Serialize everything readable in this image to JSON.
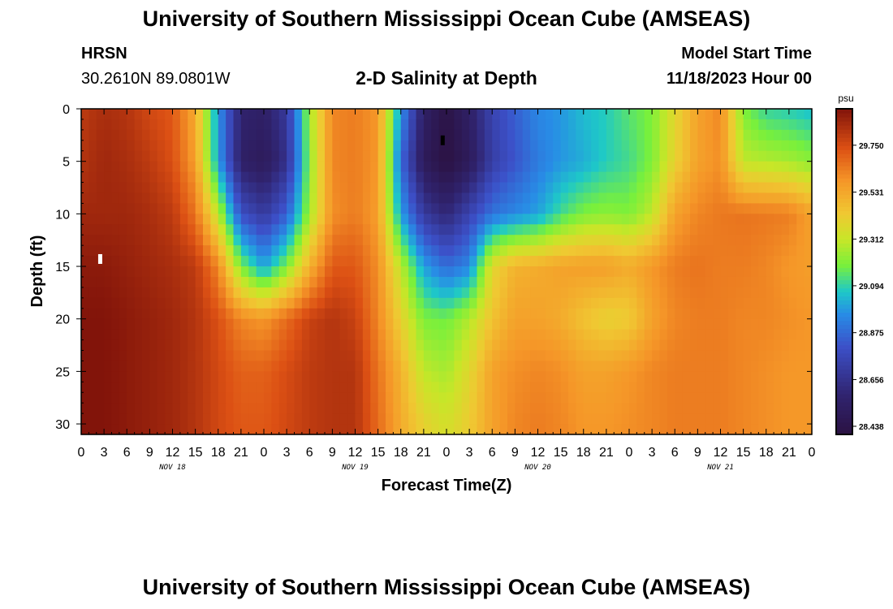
{
  "header": {
    "title": "University of Southern Mississippi Ocean Cube (AMSEAS)",
    "footer_title": "University of Southern Mississippi Ocean Cube (AMSEAS)",
    "station": "HRSN",
    "coordinates": "30.2610N  89.0801W",
    "plot_title": "2-D Salinity at Depth",
    "model_start_label": "Model Start Time",
    "model_start_value": "11/18/2023 Hour 00"
  },
  "chart_data": {
    "type": "heatmap",
    "title": "2-D Salinity at Depth",
    "xlabel": "Forecast Time(Z)",
    "ylabel": "Depth (ft)",
    "xlim": [
      0,
      96
    ],
    "ylim": [
      0,
      31
    ],
    "x_ticks": [
      0,
      3,
      6,
      9,
      12,
      15,
      18,
      21,
      24,
      27,
      30,
      33,
      36,
      39,
      42,
      45,
      48,
      51,
      54,
      57,
      60,
      63,
      66,
      69,
      72,
      75,
      78,
      81,
      84,
      87,
      90,
      93,
      96
    ],
    "x_tick_labels": [
      "0",
      "3",
      "6",
      "9",
      "12",
      "15",
      "18",
      "21",
      "0",
      "3",
      "6",
      "9",
      "12",
      "15",
      "18",
      "21",
      "0",
      "3",
      "6",
      "9",
      "12",
      "15",
      "18",
      "21",
      "0",
      "3",
      "6",
      "9",
      "12",
      "15",
      "18",
      "21",
      "0"
    ],
    "y_ticks": [
      0,
      5,
      10,
      15,
      20,
      25,
      30
    ],
    "y_tick_labels": [
      "0",
      "5",
      "10",
      "15",
      "20",
      "25",
      "30"
    ],
    "date_labels": [
      {
        "text": "NOV 18",
        "hour": 12
      },
      {
        "text": "NOV 19",
        "hour": 36
      },
      {
        "text": "NOV 20",
        "hour": 60
      },
      {
        "text": "NOV 21",
        "hour": 84
      }
    ],
    "colorbar": {
      "unit": "psu",
      "ticks": [
        29.75,
        29.531,
        29.312,
        29.094,
        28.875,
        28.656,
        28.438
      ],
      "tick_labels": [
        "29.750",
        "29.531",
        "29.312",
        "29.094",
        "28.875",
        "28.656",
        "28.438"
      ],
      "range": [
        28.4,
        29.92
      ]
    },
    "field": {
      "hours": [
        0,
        3,
        6,
        9,
        12,
        15,
        18,
        21,
        24,
        27,
        30,
        33,
        36,
        39,
        42,
        45,
        48,
        51,
        54,
        57,
        60,
        63,
        66,
        69,
        72,
        75,
        78,
        81,
        84,
        87,
        90,
        93,
        96
      ],
      "depths": [
        0,
        5,
        10,
        15,
        20,
        25,
        30
      ],
      "values": [
        [
          29.8,
          29.84,
          29.82,
          29.76,
          29.72,
          29.52,
          28.98,
          28.58,
          28.55,
          28.7,
          29.25,
          29.62,
          29.64,
          29.58,
          28.98,
          28.55,
          28.42,
          28.55,
          28.75,
          28.85,
          28.95,
          28.98,
          29.05,
          29.08,
          29.15,
          29.2,
          29.38,
          29.55,
          29.62,
          29.2,
          29.1,
          29.08,
          29.05
        ],
        [
          29.82,
          29.86,
          29.84,
          29.8,
          29.74,
          29.56,
          29.0,
          28.55,
          28.5,
          28.65,
          29.22,
          29.62,
          29.64,
          29.58,
          28.88,
          28.5,
          28.4,
          28.5,
          28.72,
          28.82,
          28.92,
          28.98,
          29.02,
          29.08,
          29.12,
          29.2,
          29.4,
          29.55,
          29.6,
          29.3,
          29.28,
          29.26,
          29.22
        ],
        [
          29.86,
          29.86,
          29.86,
          29.84,
          29.8,
          29.66,
          29.3,
          28.8,
          28.7,
          28.85,
          29.25,
          29.6,
          29.64,
          29.56,
          29.0,
          28.7,
          28.6,
          28.75,
          28.9,
          28.95,
          29.0,
          29.12,
          29.2,
          29.22,
          29.2,
          29.3,
          29.55,
          29.62,
          29.65,
          29.66,
          29.65,
          29.64,
          29.55
        ],
        [
          29.9,
          29.9,
          29.88,
          29.86,
          29.84,
          29.8,
          29.62,
          29.2,
          29.0,
          29.2,
          29.5,
          29.72,
          29.72,
          29.6,
          29.3,
          29.0,
          28.88,
          28.95,
          29.38,
          29.5,
          29.52,
          29.55,
          29.56,
          29.56,
          29.52,
          29.58,
          29.64,
          29.66,
          29.64,
          29.64,
          29.62,
          29.58,
          29.56
        ],
        [
          29.92,
          29.92,
          29.9,
          29.88,
          29.86,
          29.82,
          29.74,
          29.62,
          29.58,
          29.68,
          29.78,
          29.82,
          29.78,
          29.62,
          29.4,
          29.2,
          29.18,
          29.28,
          29.45,
          29.55,
          29.55,
          29.52,
          29.45,
          29.4,
          29.42,
          29.55,
          29.62,
          29.64,
          29.64,
          29.62,
          29.62,
          29.6,
          29.58
        ],
        [
          29.92,
          29.92,
          29.9,
          29.88,
          29.86,
          29.82,
          29.76,
          29.7,
          29.7,
          29.75,
          29.8,
          29.82,
          29.82,
          29.66,
          29.5,
          29.3,
          29.26,
          29.38,
          29.55,
          29.6,
          29.62,
          29.6,
          29.55,
          29.55,
          29.58,
          29.62,
          29.64,
          29.64,
          29.64,
          29.62,
          29.6,
          29.58,
          29.58
        ],
        [
          29.92,
          29.92,
          29.9,
          29.88,
          29.86,
          29.82,
          29.76,
          29.72,
          29.72,
          29.76,
          29.8,
          29.82,
          29.82,
          29.68,
          29.52,
          29.4,
          29.34,
          29.42,
          29.55,
          29.62,
          29.64,
          29.62,
          29.58,
          29.58,
          29.6,
          29.62,
          29.64,
          29.64,
          29.64,
          29.62,
          29.6,
          29.58,
          29.58
        ]
      ]
    },
    "markers": [
      {
        "hour": 2.5,
        "depth": 14.3,
        "color": "#ffffff"
      },
      {
        "hour": 47.5,
        "depth": 3.0,
        "color": "#000000"
      }
    ]
  }
}
